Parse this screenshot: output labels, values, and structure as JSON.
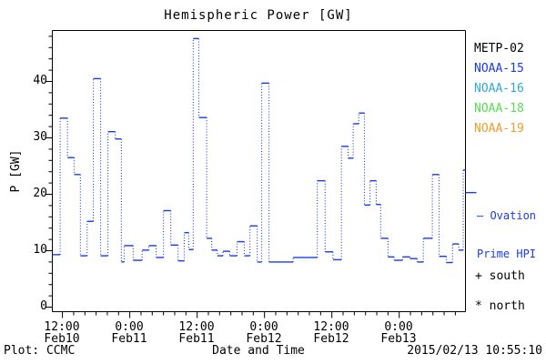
{
  "title": "Hemispheric Power [GW]",
  "legend": {
    "items": [
      {
        "label": "METP-02",
        "color": "#000000"
      },
      {
        "label": "NOAA-15",
        "color": "#1a3ce8"
      },
      {
        "label": "NOAA-16",
        "color": "#2fa8e0"
      },
      {
        "label": "NOAA-18",
        "color": "#57dd57"
      },
      {
        "label": "NOAA-19",
        "color": "#f09d2c"
      }
    ],
    "ovation_line1": "— Ovation",
    "ovation_line2": "Prime HPI",
    "ovation_color": "#1a3ce8",
    "south_marker": "+ south",
    "north_marker": "* north"
  },
  "axes": {
    "ylabel": "P [GW]",
    "xlabel": "Date and Time",
    "y_tick_labels": [
      "0",
      "10",
      "20",
      "30",
      "40"
    ],
    "x_tick_times": [
      "12:00",
      "0:00",
      "12:00",
      "0:00",
      "12:00",
      "0:00"
    ],
    "x_tick_dates": [
      "Feb10",
      "Feb11",
      "Feb11",
      "Feb12",
      "Feb12",
      "Feb13"
    ]
  },
  "footer": {
    "plot_credit": "Plot: CCMC",
    "timestamp": "2015/02/13 10:55:10"
  },
  "chart_data": {
    "type": "line",
    "title": "Hemispheric Power [GW]",
    "xlabel": "Date and Time",
    "ylabel": "P [GW]",
    "ylim": [
      0,
      49
    ],
    "x_range": [
      0,
      73.6
    ],
    "x_axis_note": "hours from plot start (about Feb10 10:15 UT)",
    "x_major_ticks": [
      1.8,
      13.8,
      25.8,
      37.8,
      49.8,
      61.8
    ],
    "x_major_tick_labels": [
      "12:00 Feb10",
      "0:00 Feb11",
      "12:00 Feb11",
      "0:00 Feb12",
      "12:00 Feb12",
      "0:00 Feb13"
    ],
    "x_minor_step": 2,
    "y_major_ticks": [
      0,
      10,
      20,
      30,
      40
    ],
    "y_minor_step": 2,
    "grid": false,
    "legend_position": "right",
    "legend_marker_value": 20.3,
    "series": [
      {
        "name": "Ovation Prime HPI",
        "color": "#1a3ce8",
        "style": "step-dotted",
        "steps": [
          [
            0.0,
            9.3
          ],
          [
            1.4,
            33.5
          ],
          [
            2.7,
            26.5
          ],
          [
            3.9,
            23.5
          ],
          [
            5.0,
            9.1
          ],
          [
            6.2,
            15.2
          ],
          [
            7.3,
            40.5
          ],
          [
            8.6,
            9.1
          ],
          [
            9.9,
            31.1
          ],
          [
            11.2,
            29.8
          ],
          [
            12.3,
            8.0
          ],
          [
            12.8,
            10.9
          ],
          [
            14.4,
            8.3
          ],
          [
            16.0,
            10.1
          ],
          [
            17.2,
            10.9
          ],
          [
            18.5,
            8.8
          ],
          [
            19.8,
            17.1
          ],
          [
            21.1,
            11.0
          ],
          [
            22.4,
            8.2
          ],
          [
            23.5,
            13.2
          ],
          [
            24.3,
            10.2
          ],
          [
            25.1,
            47.6
          ],
          [
            26.1,
            33.6
          ],
          [
            27.5,
            12.2
          ],
          [
            28.4,
            10.1
          ],
          [
            29.4,
            9.1
          ],
          [
            30.4,
            9.9
          ],
          [
            31.6,
            9.1
          ],
          [
            32.9,
            11.6
          ],
          [
            34.2,
            9.1
          ],
          [
            35.2,
            14.4
          ],
          [
            36.5,
            8.0
          ],
          [
            37.3,
            39.7
          ],
          [
            38.6,
            8.0
          ],
          [
            42.9,
            8.8
          ],
          [
            47.2,
            22.4
          ],
          [
            48.6,
            9.8
          ],
          [
            50.0,
            8.4
          ],
          [
            51.5,
            28.5
          ],
          [
            52.7,
            26.4
          ],
          [
            53.6,
            32.5
          ],
          [
            54.6,
            34.4
          ],
          [
            55.6,
            18.1
          ],
          [
            56.6,
            22.4
          ],
          [
            57.7,
            18.2
          ],
          [
            58.5,
            12.2
          ],
          [
            59.8,
            8.9
          ],
          [
            60.9,
            8.3
          ],
          [
            62.4,
            8.9
          ],
          [
            63.7,
            8.6
          ],
          [
            65.0,
            8.0
          ],
          [
            66.1,
            12.2
          ],
          [
            67.7,
            23.5
          ],
          [
            68.9,
            9.0
          ],
          [
            70.2,
            7.9
          ],
          [
            71.3,
            11.2
          ],
          [
            72.4,
            10.1
          ],
          [
            73.2,
            24.3
          ]
        ]
      }
    ]
  }
}
